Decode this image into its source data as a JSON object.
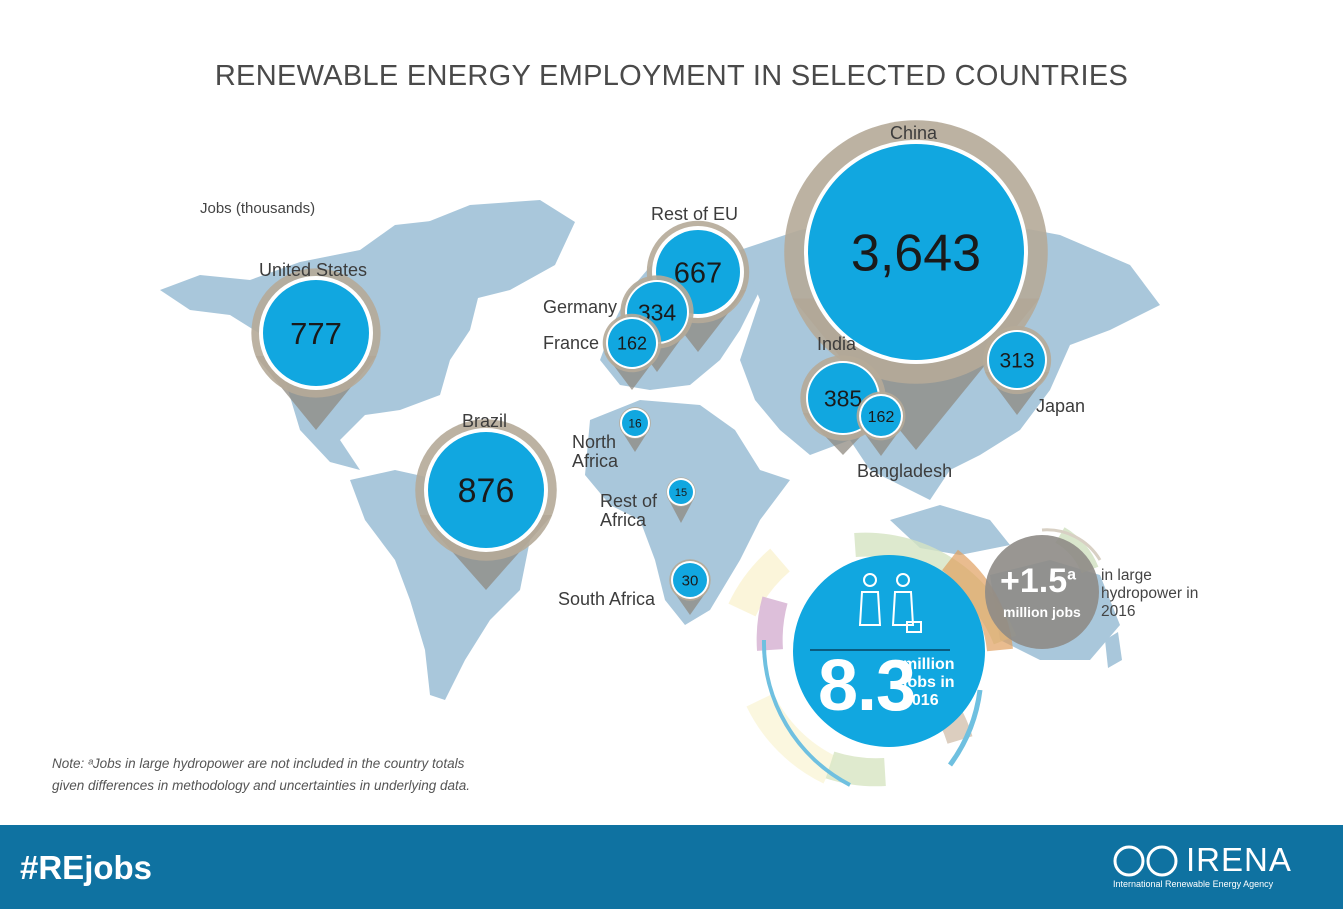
{
  "title": "RENEWABLE ENERGY EMPLOYMENT IN SELECTED COUNTRIES",
  "units": "Jobs (thousands)",
  "countries": [
    {
      "name": "China",
      "value": "3,643"
    },
    {
      "name": "Brazil",
      "value": "876"
    },
    {
      "name": "United States",
      "value": "777"
    },
    {
      "name": "Rest of EU",
      "value": "667"
    },
    {
      "name": "India",
      "value": "385"
    },
    {
      "name": "Germany",
      "value": "334"
    },
    {
      "name": "Japan",
      "value": "313"
    },
    {
      "name": "France",
      "value": "162"
    },
    {
      "name": "Bangladesh",
      "value": "162"
    },
    {
      "name": "South Africa",
      "value": "30"
    },
    {
      "name": "North Africa",
      "value": "16"
    },
    {
      "name": "Rest of Africa",
      "value": "15"
    }
  ],
  "total": {
    "value": "8.3",
    "label": "million jobs in 2016"
  },
  "hydro": {
    "value": "+1.5",
    "sup": "a",
    "unit": "million jobs",
    "label": "in large hydropower in 2016"
  },
  "note": {
    "line1": "Note: ᵃJobs in large hydropower are not included in the country totals",
    "line2": "given differences in methodology and uncertainties in underlying data."
  },
  "footer": {
    "hashtag": "#REjobs",
    "brand": "IRENA",
    "brand_sub": "International Renewable Energy Agency"
  },
  "colors": {
    "pin_outer": "#b5aa98",
    "pin_inner": "#11a7e0",
    "map": "#a9c7db",
    "footer": "#0f72a1"
  }
}
